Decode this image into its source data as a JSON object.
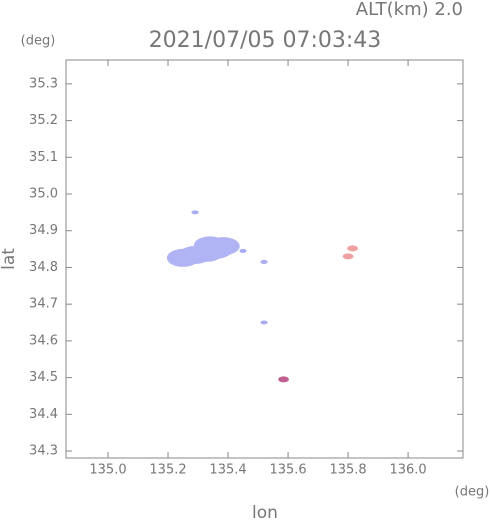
{
  "chart_data": {
    "type": "scatter",
    "title": "2021/07/05 07:03:43",
    "altitude_label": "ALT(km)  2.0",
    "y_unit": "(deg)",
    "x_unit": "(deg)",
    "x_label": "lon",
    "y_label": "lat",
    "xlim": [
      134.86,
      136.183
    ],
    "ylim": [
      34.281,
      35.365
    ],
    "xticks": [
      {
        "value": 135,
        "label": "135.0"
      },
      135.2,
      135.4,
      135.6,
      135.8,
      {
        "value": 136,
        "label": "136.0"
      }
    ],
    "yticks": [
      34.3,
      34.4,
      34.5,
      34.6,
      34.7,
      34.8,
      34.9,
      {
        "value": 35,
        "label": "35.0"
      },
      35.1,
      35.2,
      35.3
    ],
    "series": [
      {
        "color": "#b0b4f4",
        "marker_size": 9,
        "x": [
          135.25,
          135.29,
          135.33,
          135.36,
          135.385,
          135.34
        ],
        "y": [
          34.826,
          34.834,
          34.84,
          34.848,
          34.858,
          34.86
        ]
      },
      {
        "color": "#a8acf0",
        "marker_size": 2,
        "x": [
          135.29,
          135.45,
          135.52,
          135.52
        ],
        "y": [
          34.95,
          34.845,
          34.815,
          34.65
        ]
      },
      {
        "color": "#c06090",
        "marker_size": 3,
        "x": [
          135.585
        ],
        "y": [
          34.495
        ]
      },
      {
        "color": "#f0a0a0",
        "marker_size": 3,
        "x": [
          135.815,
          135.8
        ],
        "y": [
          34.852,
          34.83
        ]
      }
    ]
  }
}
